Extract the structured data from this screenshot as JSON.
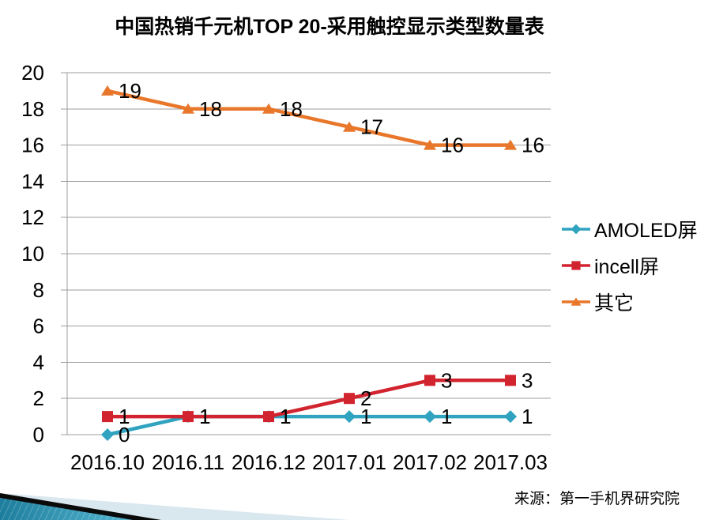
{
  "page": {
    "title": "中国热销千元机TOP 20-采用触控显示类型数量表",
    "source": "来源：第一手机界研究院"
  },
  "chart_data": {
    "type": "line",
    "title": "中国热销千元机TOP 20-采用触控显示类型数量表",
    "categories": [
      "2016.10",
      "2016.11",
      "2016.12",
      "2017.01",
      "2017.02",
      "2017.03"
    ],
    "series": [
      {
        "name": "AMOLED屏",
        "marker": "diamond",
        "color": "#2FA3C0",
        "values": [
          0,
          1,
          1,
          1,
          1,
          1
        ]
      },
      {
        "name": "incell屏",
        "marker": "square",
        "color": "#D2242F",
        "values": [
          1,
          1,
          1,
          2,
          3,
          3
        ]
      },
      {
        "name": "其它",
        "marker": "triangle",
        "color": "#E8772B",
        "values": [
          19,
          18,
          18,
          17,
          16,
          16
        ]
      }
    ],
    "ylim": [
      0,
      20
    ],
    "ytick_step": 2,
    "grid": true,
    "data_labels": true,
    "legend_position": "right",
    "axis_color": "#9c9c9c",
    "label_color": "#000000",
    "source": "来源：第一手机界研究院"
  }
}
